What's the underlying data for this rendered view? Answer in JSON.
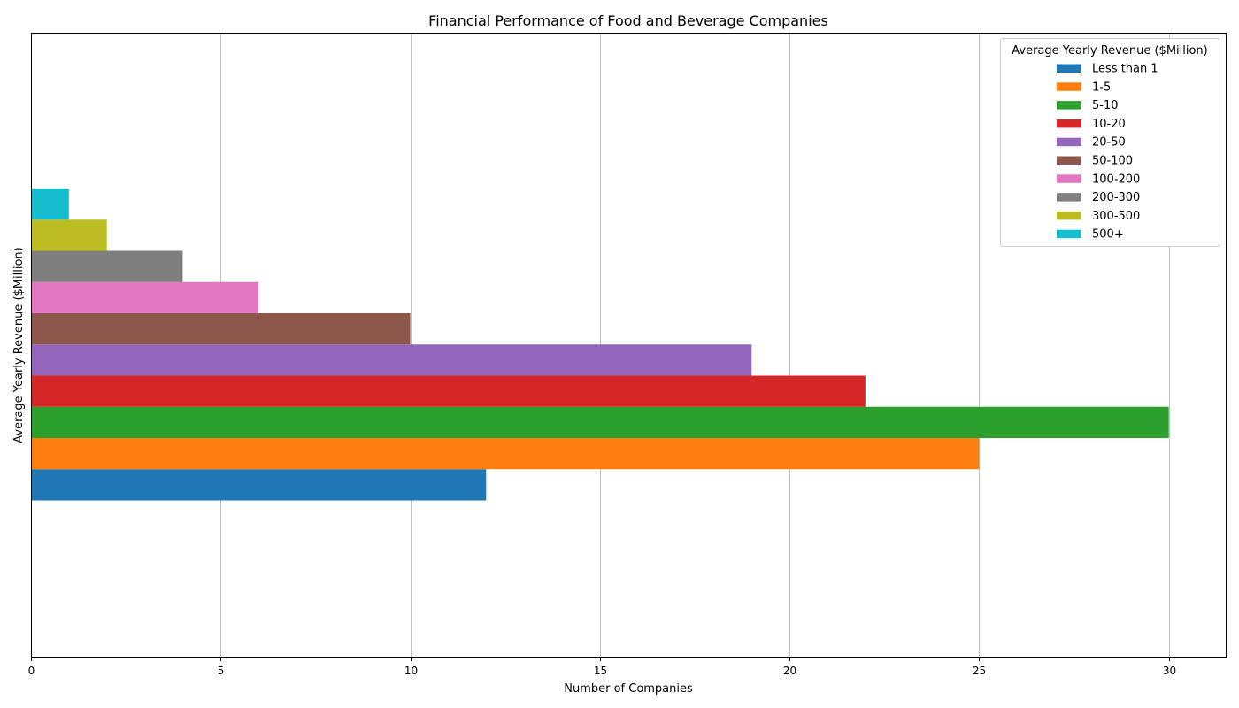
{
  "chart_data": {
    "type": "bar",
    "orientation": "horizontal",
    "title": "Financial Performance of Food and Beverage Companies",
    "xlabel": "Number of Companies",
    "ylabel": "Average Yearly Revenue ($Million)",
    "xlim": [
      0,
      31.5
    ],
    "xticks": [
      0,
      5,
      10,
      15,
      20,
      25,
      30
    ],
    "grid": "vertical",
    "legend_title": "Average Yearly Revenue ($Million)",
    "legend_position": "upper-right",
    "series": [
      {
        "name": "Less than 1",
        "value": 12,
        "color": "#1f77b4"
      },
      {
        "name": "1-5",
        "value": 25,
        "color": "#ff7f0e"
      },
      {
        "name": "5-10",
        "value": 30,
        "color": "#2ca02c"
      },
      {
        "name": "10-20",
        "value": 22,
        "color": "#d62728"
      },
      {
        "name": "20-50",
        "value": 19,
        "color": "#9467bd"
      },
      {
        "name": "50-100",
        "value": 10,
        "color": "#8c564b"
      },
      {
        "name": "100-200",
        "value": 6,
        "color": "#e377c2"
      },
      {
        "name": "200-300",
        "value": 4,
        "color": "#7f7f7f"
      },
      {
        "name": "300-500",
        "value": 2,
        "color": "#bcbd22"
      },
      {
        "name": "500+",
        "value": 1,
        "color": "#17becf"
      }
    ]
  }
}
